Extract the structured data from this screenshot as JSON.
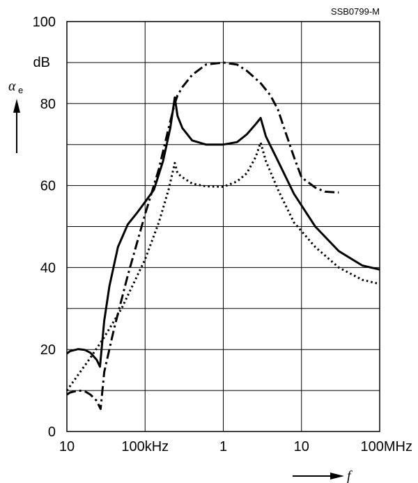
{
  "figure_code": "SSB0799-M",
  "chart_data": {
    "type": "line",
    "x_scale": "log",
    "x_unit_ticks": [
      {
        "value": 10000,
        "label": "10"
      },
      {
        "value": 100000,
        "label": "100kHz"
      },
      {
        "value": 1000000,
        "label": "1"
      },
      {
        "value": 10000000,
        "label": "10"
      },
      {
        "value": 100000000,
        "label": "100MHz"
      }
    ],
    "xlim": [
      10000,
      100000000
    ],
    "ylim": [
      0,
      100
    ],
    "y_ticks": [
      {
        "value": 0,
        "label": "0"
      },
      {
        "value": 20,
        "label": "20"
      },
      {
        "value": 40,
        "label": "40"
      },
      {
        "value": 60,
        "label": "60"
      },
      {
        "value": 80,
        "label": "80"
      },
      {
        "value": 100,
        "label": "100"
      }
    ],
    "y_unit_label": "dB",
    "ylabel_symbol": "α",
    "ylabel_subscript": "e",
    "xlabel": "f",
    "grid": true,
    "series": [
      {
        "style": "solid",
        "x": [
          10000,
          11000,
          14000,
          17000,
          20000,
          24000,
          26500,
          30000,
          35000,
          45000,
          60000,
          80000,
          100000,
          130000,
          170000,
          210000,
          240000,
          260000,
          300000,
          400000,
          600000,
          1000000,
          1500000,
          2000000,
          2600000,
          3000000,
          3500000,
          5000000,
          8000000,
          15000000,
          30000000,
          60000000,
          100000000
        ],
        "y": [
          19,
          19.6,
          20.1,
          19.9,
          19.2,
          17.5,
          15.8,
          27,
          35.5,
          45,
          50.5,
          53.5,
          56,
          59,
          66,
          74,
          81.5,
          77,
          74,
          71,
          70,
          70,
          70.6,
          72.5,
          75,
          76.5,
          72,
          66,
          58,
          50,
          44,
          40.5,
          39.5
        ]
      },
      {
        "style": "dashdot",
        "x": [
          10000,
          11000,
          14000,
          17000,
          20000,
          24000,
          27000,
          30000,
          40000,
          60000,
          100000,
          150000,
          200000,
          240000,
          260000,
          300000,
          400000,
          600000,
          1000000,
          1500000,
          2000000,
          3000000,
          4000000,
          5000000,
          6000000,
          8000000,
          10000000,
          15000000,
          20000000,
          30000000
        ],
        "y": [
          9,
          9.5,
          10,
          9.8,
          9,
          7.5,
          5.5,
          14.5,
          25,
          38,
          53,
          64,
          74,
          80,
          82,
          84,
          87,
          89.5,
          90,
          89.5,
          88,
          85,
          82,
          78.5,
          74,
          67,
          62,
          59.5,
          58.5,
          58.3
        ]
      },
      {
        "style": "dotted",
        "x": [
          10000,
          20000,
          30000,
          50000,
          100000,
          150000,
          200000,
          240000,
          260000,
          300000,
          400000,
          600000,
          1000000,
          1500000,
          2000000,
          2600000,
          3000000,
          3500000,
          5000000,
          8000000,
          15000000,
          30000000,
          60000000,
          100000000
        ],
        "y": [
          10,
          18,
          23,
          30,
          42,
          51,
          59,
          65.5,
          63,
          62,
          60.5,
          59.8,
          59.7,
          61,
          63,
          67,
          70.5,
          66,
          59,
          51,
          45,
          40,
          37,
          36
        ]
      }
    ]
  }
}
